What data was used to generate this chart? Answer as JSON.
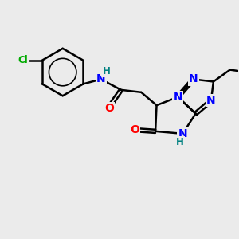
{
  "background_color": "#ebebeb",
  "bond_color": "#000000",
  "N_color": "#0000ff",
  "O_color": "#ff0000",
  "Cl_color": "#00aa00",
  "H_color": "#008080",
  "bond_width": 1.8,
  "font_size_atom": 10,
  "font_size_small": 8.5,
  "xlim": [
    0,
    10
  ],
  "ylim": [
    0,
    10
  ]
}
